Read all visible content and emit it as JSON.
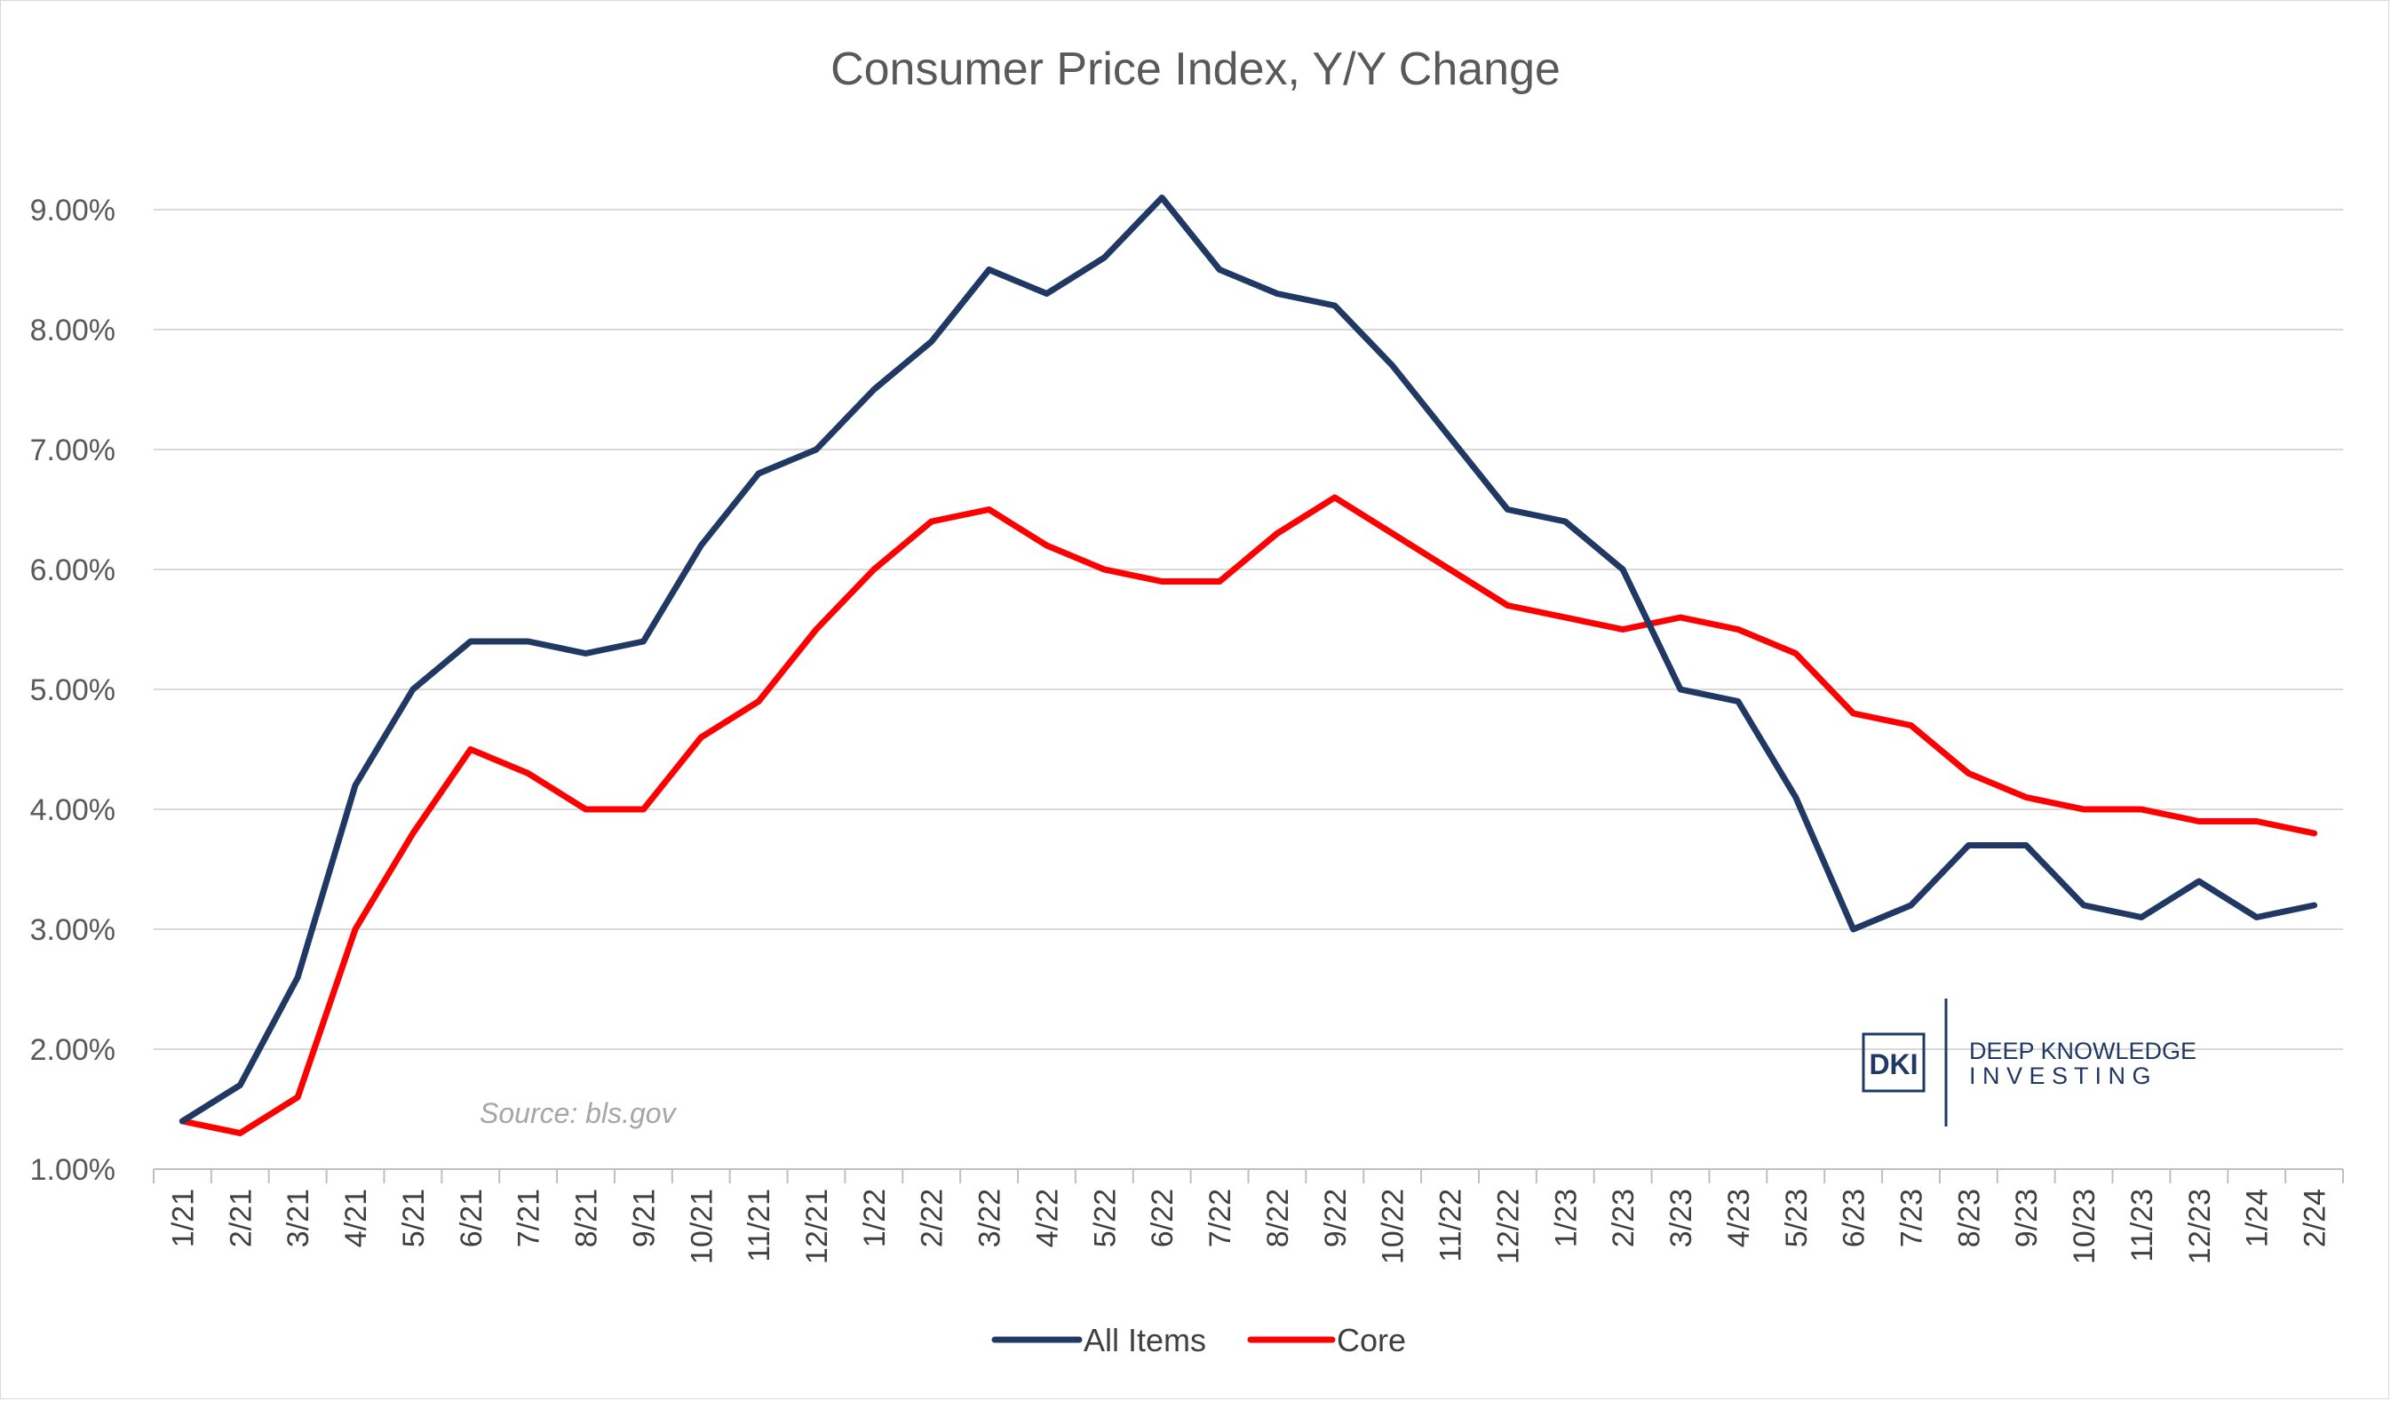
{
  "chart_data": {
    "type": "line",
    "title": "Consumer Price Index, Y/Y Change",
    "xlabel": "",
    "ylabel": "",
    "ylim": [
      1,
      9.5
    ],
    "yticks": [
      "1.00%",
      "2.00%",
      "3.00%",
      "4.00%",
      "5.00%",
      "6.00%",
      "7.00%",
      "8.00%",
      "9.00%"
    ],
    "grid": true,
    "legend_position": "bottom",
    "categories": [
      "1/21",
      "2/21",
      "3/21",
      "4/21",
      "5/21",
      "6/21",
      "7/21",
      "8/21",
      "9/21",
      "10/21",
      "11/21",
      "12/21",
      "1/22",
      "2/22",
      "3/22",
      "4/22",
      "5/22",
      "6/22",
      "7/22",
      "8/22",
      "9/22",
      "10/22",
      "11/22",
      "12/22",
      "1/23",
      "2/23",
      "3/23",
      "4/23",
      "5/23",
      "6/23",
      "7/23",
      "8/23",
      "9/23",
      "10/23",
      "11/23",
      "12/23",
      "1/24",
      "2/24"
    ],
    "series": [
      {
        "name": "All Items",
        "color": "#1f3864",
        "values": [
          1.4,
          1.7,
          2.6,
          4.2,
          5.0,
          5.4,
          5.4,
          5.3,
          5.4,
          6.2,
          6.8,
          7.0,
          7.5,
          7.9,
          8.5,
          8.3,
          8.6,
          9.1,
          8.5,
          8.3,
          8.2,
          7.7,
          7.1,
          6.5,
          6.4,
          6.0,
          5.0,
          4.9,
          4.1,
          3.0,
          3.2,
          3.7,
          3.7,
          3.2,
          3.1,
          3.4,
          3.1,
          3.2
        ]
      },
      {
        "name": "Core",
        "color": "#ff0000",
        "values": [
          1.4,
          1.3,
          1.6,
          3.0,
          3.8,
          4.5,
          4.3,
          4.0,
          4.0,
          4.6,
          4.9,
          5.5,
          6.0,
          6.4,
          6.5,
          6.2,
          6.0,
          5.9,
          5.9,
          6.3,
          6.6,
          6.3,
          6.0,
          5.7,
          5.6,
          5.5,
          5.6,
          5.5,
          5.3,
          4.8,
          4.7,
          4.3,
          4.1,
          4.0,
          4.0,
          3.9,
          3.9,
          3.8
        ]
      }
    ],
    "annotations": {
      "source": "Source: bls.gov"
    }
  },
  "logo": {
    "mark": "DKI",
    "line1": "DEEP KNOWLEDGE",
    "line2": "I N V E S T I N G",
    "color": "#1f3864"
  }
}
